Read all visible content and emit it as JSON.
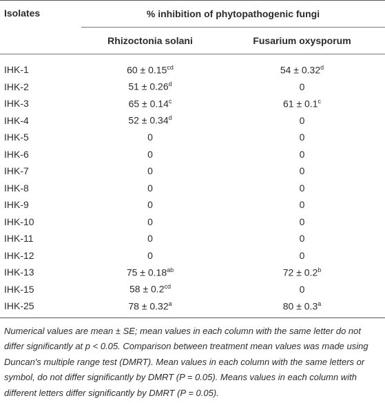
{
  "table": {
    "header": {
      "col0": "Isolates",
      "group": "% inhibition of phytopathogenic fungi",
      "col1": "Rhizoctonia solani",
      "col2": "Fusarium oxysporum"
    },
    "rows": [
      {
        "isolate": "IHK-1",
        "rs": {
          "text": "60 ± 0.15",
          "sup": "cd"
        },
        "fo": {
          "text": "54 ± 0.32",
          "sup": "d"
        }
      },
      {
        "isolate": "IHK-2",
        "rs": {
          "text": "51 ± 0.26",
          "sup": "d"
        },
        "fo": {
          "text": "0"
        }
      },
      {
        "isolate": "IHK-3",
        "rs": {
          "text": "65 ± 0.14",
          "sup": "c"
        },
        "fo": {
          "text": "61 ± 0.1",
          "sup": "c"
        }
      },
      {
        "isolate": "IHK-4",
        "rs": {
          "text": "52 ± 0.34",
          "sup": "d"
        },
        "fo": {
          "text": "0"
        }
      },
      {
        "isolate": "IHK-5",
        "rs": {
          "text": "0"
        },
        "fo": {
          "text": "0"
        }
      },
      {
        "isolate": "IHK-6",
        "rs": {
          "text": "0"
        },
        "fo": {
          "text": "0"
        }
      },
      {
        "isolate": "IHK-7",
        "rs": {
          "text": "0"
        },
        "fo": {
          "text": "0"
        }
      },
      {
        "isolate": "IHK-8",
        "rs": {
          "text": "0"
        },
        "fo": {
          "text": "0"
        }
      },
      {
        "isolate": "IHK-9",
        "rs": {
          "text": "0"
        },
        "fo": {
          "text": "0"
        }
      },
      {
        "isolate": "IHK-10",
        "rs": {
          "text": "0"
        },
        "fo": {
          "text": "0"
        }
      },
      {
        "isolate": "IHK-11",
        "rs": {
          "text": "0"
        },
        "fo": {
          "text": "0"
        }
      },
      {
        "isolate": "IHK-12",
        "rs": {
          "text": "0"
        },
        "fo": {
          "text": "0"
        }
      },
      {
        "isolate": "IHK-13",
        "rs": {
          "text": "75 ± 0.18",
          "sup": "ab"
        },
        "fo": {
          "text": "72 ± 0.2",
          "sup": "b"
        }
      },
      {
        "isolate": "IHK-15",
        "rs": {
          "text": "58 ± 0.2",
          "sup": "cd"
        },
        "fo": {
          "text": "0"
        }
      },
      {
        "isolate": "IHK-25",
        "rs": {
          "text": "78 ± 0.32",
          "sup": "a"
        },
        "fo": {
          "text": "80 ± 0.3",
          "sup": "a"
        }
      }
    ],
    "footnote": "Numerical values are mean ± SE; mean values in each column with the same letter do not differ significantly at p < 0.05. Comparison between treatment mean values was made using Duncan's multiple range test (DMRT). Mean values in each column with the same letters or symbol, do not differ significantly by DMRT (P = 0.05). Means values in each column with different letters differ significantly by DMRT (P = 0.05)."
  }
}
